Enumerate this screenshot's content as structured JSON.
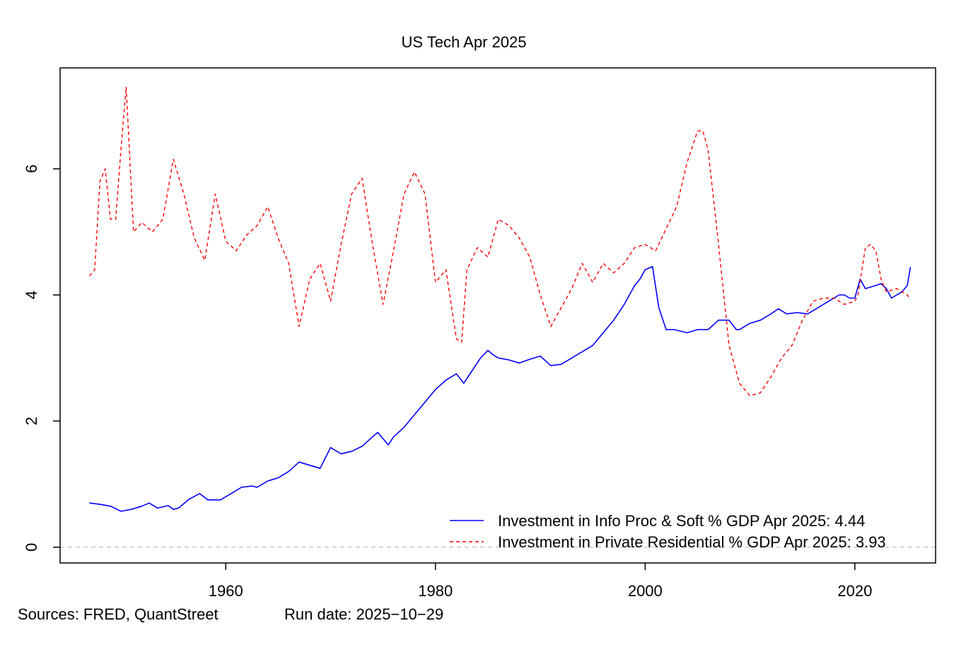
{
  "chart_data": {
    "type": "line",
    "title": "US Tech Apr 2025",
    "xlabel": "",
    "ylabel": "",
    "xlim": [
      1944.2,
      2027.7
    ],
    "ylim": [
      -0.25,
      7.6
    ],
    "x_ticks": [
      1960,
      1980,
      2000,
      2020
    ],
    "y_ticks": [
      0,
      2,
      4,
      6
    ],
    "grid": false,
    "reference_lines": [
      {
        "y": 0,
        "style": "dashed",
        "color": "#bbbbbb"
      }
    ],
    "legend_position": "bottom-right",
    "series": [
      {
        "name": "Investment in Info Proc & Soft % GDP Apr 2025: 4.44",
        "color": "#0000ff",
        "style": "solid",
        "x": [
          1947.0,
          1948.0,
          1949.0,
          1950.0,
          1951.0,
          1952.0,
          1952.7,
          1953.5,
          1954.5,
          1955.0,
          1955.5,
          1956.5,
          1957.5,
          1958.3,
          1959.5,
          1960.5,
          1961.5,
          1962.5,
          1963.0,
          1964.0,
          1965.0,
          1966.0,
          1967.0,
          1968.0,
          1969.0,
          1970.0,
          1971.0,
          1972.0,
          1973.0,
          1974.0,
          1974.5,
          1975.5,
          1976.0,
          1977.0,
          1978.0,
          1979.0,
          1980.0,
          1981.0,
          1982.0,
          1982.7,
          1983.5,
          1984.3,
          1985.0,
          1985.5,
          1986.0,
          1987.0,
          1988.0,
          1989.0,
          1990.0,
          1991.0,
          1992.0,
          1993.0,
          1994.0,
          1995.0,
          1996.0,
          1997.0,
          1998.0,
          1999.0,
          1999.5,
          2000.0,
          2000.7,
          2001.3,
          2002.0,
          2002.8,
          2004.0,
          2005.0,
          2006.0,
          2007.0,
          2008.0,
          2008.7,
          2009.0,
          2010.0,
          2011.0,
          2012.0,
          2012.7,
          2013.5,
          2014.5,
          2015.5,
          2016.5,
          2017.5,
          2018.5,
          2019.0,
          2019.5,
          2020.0,
          2020.5,
          2021.0,
          2022.0,
          2022.5,
          2023.0,
          2023.5,
          2024.0,
          2024.5,
          2025.0,
          2025.3
        ],
        "y": [
          0.7,
          0.68,
          0.65,
          0.57,
          0.6,
          0.65,
          0.7,
          0.62,
          0.66,
          0.6,
          0.62,
          0.76,
          0.85,
          0.75,
          0.75,
          0.85,
          0.95,
          0.97,
          0.95,
          1.05,
          1.1,
          1.2,
          1.35,
          1.3,
          1.25,
          1.58,
          1.48,
          1.52,
          1.6,
          1.75,
          1.82,
          1.62,
          1.75,
          1.9,
          2.1,
          2.3,
          2.5,
          2.65,
          2.75,
          2.6,
          2.8,
          3.0,
          3.12,
          3.05,
          3.0,
          2.97,
          2.92,
          2.98,
          3.03,
          2.88,
          2.9,
          3.0,
          3.1,
          3.2,
          3.4,
          3.6,
          3.85,
          4.15,
          4.25,
          4.4,
          4.45,
          3.8,
          3.45,
          3.45,
          3.4,
          3.45,
          3.45,
          3.6,
          3.6,
          3.45,
          3.45,
          3.55,
          3.6,
          3.7,
          3.78,
          3.7,
          3.72,
          3.7,
          3.8,
          3.9,
          4.0,
          4.0,
          3.95,
          3.95,
          4.25,
          4.1,
          4.15,
          4.18,
          4.1,
          3.95,
          4.0,
          4.05,
          4.15,
          4.44
        ]
      },
      {
        "name": "Investment in Private Residential % GDP Apr 2025: 3.93",
        "color": "#ff0000",
        "style": "dashed",
        "x": [
          1947.0,
          1947.5,
          1948.0,
          1948.5,
          1949.0,
          1949.5,
          1950.0,
          1950.5,
          1951.2,
          1952.0,
          1953.0,
          1954.0,
          1955.0,
          1956.0,
          1957.0,
          1958.0,
          1959.0,
          1960.0,
          1961.0,
          1962.0,
          1963.0,
          1964.0,
          1965.0,
          1966.0,
          1967.0,
          1968.0,
          1969.0,
          1970.0,
          1971.0,
          1972.0,
          1973.0,
          1974.0,
          1975.0,
          1976.0,
          1977.0,
          1978.0,
          1979.0,
          1980.0,
          1981.0,
          1982.0,
          1982.5,
          1983.0,
          1984.0,
          1985.0,
          1986.0,
          1987.0,
          1988.0,
          1989.0,
          1990.0,
          1991.0,
          1992.0,
          1993.0,
          1994.0,
          1995.0,
          1996.0,
          1997.0,
          1998.0,
          1999.0,
          2000.0,
          2001.0,
          2002.0,
          2003.0,
          2004.0,
          2005.0,
          2005.5,
          2006.0,
          2007.0,
          2008.0,
          2009.0,
          2010.0,
          2011.0,
          2012.0,
          2013.0,
          2014.0,
          2015.0,
          2016.0,
          2017.0,
          2018.0,
          2019.0,
          2020.0,
          2020.3,
          2021.0,
          2021.5,
          2022.0,
          2022.5,
          2023.0,
          2024.0,
          2025.0,
          2025.3
        ],
        "y": [
          4.3,
          4.4,
          5.8,
          6.0,
          5.2,
          5.2,
          6.3,
          7.3,
          5.0,
          5.15,
          5.0,
          5.2,
          6.15,
          5.6,
          4.9,
          4.55,
          5.6,
          4.85,
          4.7,
          4.95,
          5.1,
          5.4,
          4.9,
          4.5,
          3.5,
          4.25,
          4.5,
          3.9,
          4.8,
          5.6,
          5.85,
          4.8,
          3.85,
          4.7,
          5.6,
          5.95,
          5.6,
          4.2,
          4.4,
          3.3,
          3.25,
          4.4,
          4.75,
          4.6,
          5.2,
          5.1,
          4.9,
          4.6,
          4.0,
          3.5,
          3.8,
          4.1,
          4.5,
          4.2,
          4.5,
          4.35,
          4.5,
          4.75,
          4.8,
          4.7,
          5.05,
          5.4,
          6.1,
          6.6,
          6.6,
          6.3,
          4.8,
          3.2,
          2.6,
          2.4,
          2.45,
          2.7,
          3.0,
          3.2,
          3.6,
          3.9,
          3.95,
          3.95,
          3.85,
          3.9,
          4.0,
          4.75,
          4.8,
          4.7,
          4.25,
          4.05,
          4.1,
          4.0,
          3.93
        ]
      }
    ]
  },
  "footer": {
    "sources": "Sources: FRED, QuantStreet",
    "run_date": "Run date: 2025−10−29"
  }
}
